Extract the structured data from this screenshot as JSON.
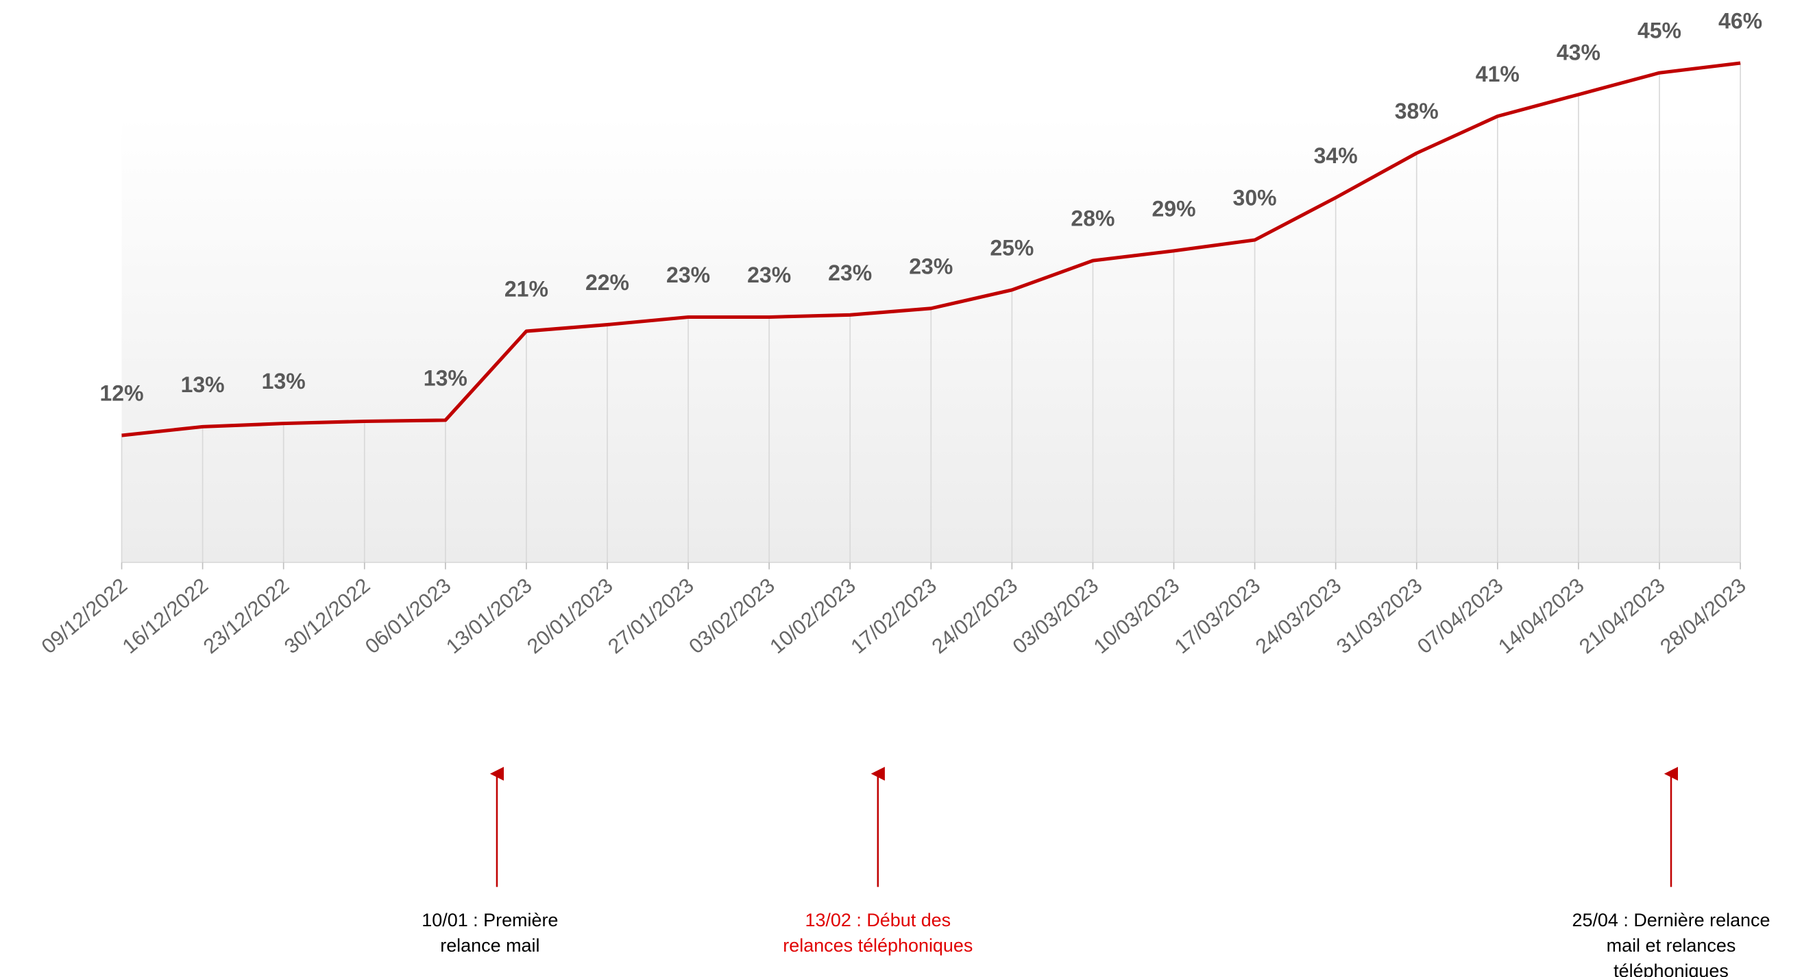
{
  "chart_data": {
    "type": "line",
    "categories": [
      "09/12/2022",
      "16/12/2022",
      "23/12/2022",
      "30/12/2022",
      "06/01/2023",
      "13/01/2023",
      "20/01/2023",
      "27/01/2023",
      "03/02/2023",
      "10/02/2023",
      "17/02/2023",
      "24/02/2023",
      "03/03/2023",
      "10/03/2023",
      "17/03/2023",
      "24/03/2023",
      "31/03/2023",
      "07/04/2023",
      "14/04/2023",
      "21/04/2023",
      "28/04/2023"
    ],
    "series": [
      {
        "color": "#c00000",
        "values": [
          11.7,
          12.5,
          12.8,
          13.0,
          13.1,
          21.3,
          21.9,
          22.6,
          22.6,
          22.8,
          23.4,
          25.1,
          27.8,
          28.7,
          29.7,
          33.6,
          37.7,
          41.1,
          43.1,
          45.1,
          46.0
        ],
        "value_labels": [
          "12%",
          "13%",
          "13%",
          null,
          "13%",
          "21%",
          "22%",
          "23%",
          "23%",
          "23%",
          "23%",
          "25%",
          "28%",
          "29%",
          "30%",
          "34%",
          "38%",
          "41%",
          "43%",
          "45%",
          "46%"
        ]
      }
    ],
    "ylim": [
      0,
      50
    ],
    "annotations": [
      {
        "lines": [
          "10/01 : Première",
          "relance mail"
        ],
        "color": "#000000"
      },
      {
        "lines": [
          "13/02 : Début des",
          "relances téléphoniques"
        ],
        "color": "#e00000"
      },
      {
        "lines": [
          "25/04 : Dernière relance",
          "mail et relances",
          "téléphoniques"
        ],
        "color": "#000000"
      }
    ]
  }
}
